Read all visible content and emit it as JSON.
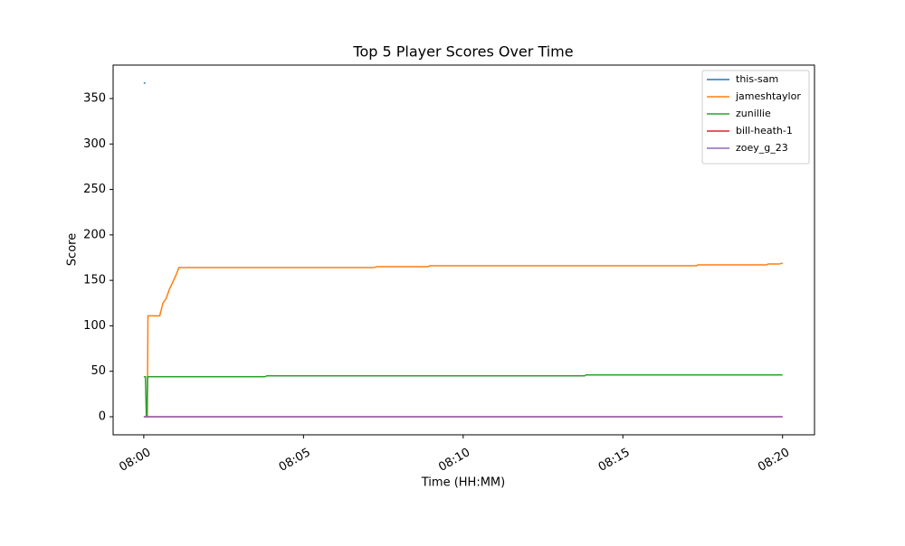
{
  "chart_data": {
    "type": "line",
    "title": "Top 5 Player Scores Over Time",
    "x_label": "Time (HH:MM)",
    "y_label": "Score",
    "xlim": [
      -0.96,
      21.0
    ],
    "ylim": [
      -19.9,
      386.8
    ],
    "xticks": [
      {
        "value": 0,
        "label": "08:00"
      },
      {
        "value": 5,
        "label": "08:05"
      },
      {
        "value": 10,
        "label": "08:10"
      },
      {
        "value": 15,
        "label": "08:15"
      },
      {
        "value": 20,
        "label": "08:20"
      }
    ],
    "yticks": [
      0,
      50,
      100,
      150,
      200,
      250,
      300,
      350
    ],
    "legend": "upper right",
    "grid": false,
    "series": [
      {
        "name": "this-sam",
        "color": "#1f77b4",
        "x": [
          0,
          0.05
        ],
        "values": [
          367,
          367
        ]
      },
      {
        "name": "jameshtaylor",
        "color": "#ff7f0e",
        "x": [
          0.05,
          0.11,
          0.13,
          0.5,
          0.6,
          0.7,
          0.8,
          1.0,
          1.1,
          7.2,
          7.3,
          8.9,
          8.95,
          17.3,
          17.35,
          19.5,
          19.55,
          19.9,
          20
        ],
        "values": [
          0,
          0,
          111,
          111,
          125,
          130,
          140,
          155,
          164,
          164,
          165,
          165,
          166,
          166,
          167,
          167,
          168,
          168,
          169
        ]
      },
      {
        "name": "zunillie",
        "color": "#2ca02c",
        "x": [
          0,
          0.05,
          0.08,
          0.1,
          0.12,
          3.8,
          3.85,
          13.8,
          13.85,
          20
        ],
        "values": [
          44,
          44,
          0,
          0,
          44,
          44,
          45,
          45,
          46,
          46
        ]
      },
      {
        "name": "bill-heath-1",
        "color": "#d62728",
        "x": [
          0,
          20
        ],
        "values": [
          0,
          0
        ]
      },
      {
        "name": "zoey_g_23",
        "color": "#9467bd",
        "x": [
          0,
          20
        ],
        "values": [
          0,
          0
        ]
      }
    ]
  }
}
